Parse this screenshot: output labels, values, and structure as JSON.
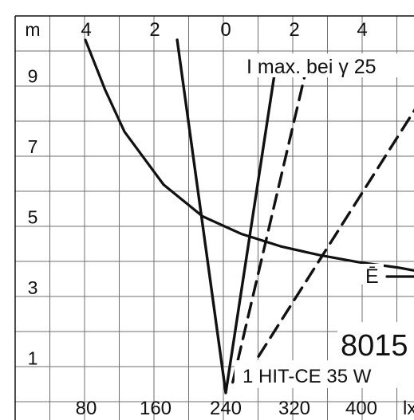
{
  "chart_data": {
    "type": "line",
    "title": "",
    "xlabel": "lx",
    "ylabel": "m",
    "grid": true,
    "top_axis": {
      "unit": "m",
      "ticks": [
        4,
        2,
        0,
        2,
        4
      ],
      "tick_labels": [
        "4",
        "2",
        "0",
        "2",
        "4"
      ]
    },
    "bottom_axis": {
      "unit": "lx",
      "ticks": [
        80,
        160,
        240,
        320,
        400
      ],
      "tick_labels": [
        "80",
        "160",
        "240",
        "320",
        "400"
      ]
    },
    "y_axis": {
      "ticks": [
        9,
        7,
        5,
        3,
        1
      ],
      "tick_labels": [
        "9",
        "7",
        "5",
        "3",
        "1"
      ],
      "ylim": [
        0,
        10
      ]
    },
    "series": [
      {
        "name": "Ē",
        "kind": "illuminance",
        "style": "solid",
        "points": [
          {
            "x": 80,
            "y": 10
          },
          {
            "x": 100,
            "y": 8.6
          },
          {
            "x": 120,
            "y": 7.4
          },
          {
            "x": 160,
            "y": 5.9
          },
          {
            "x": 200,
            "y": 5.0
          },
          {
            "x": 240,
            "y": 4.5
          },
          {
            "x": 280,
            "y": 4.15
          },
          {
            "x": 320,
            "y": 3.9
          },
          {
            "x": 360,
            "y": 3.7
          },
          {
            "x": 400,
            "y": 3.55
          },
          {
            "x": 440,
            "y": 3.35
          },
          {
            "x": 480,
            "y": 3.25
          }
        ]
      },
      {
        "name": "",
        "kind": "beam",
        "style": "solid",
        "points": [
          {
            "x": -1.4,
            "y": 10
          },
          {
            "x": 0,
            "y": 0
          },
          {
            "x": 1.4,
            "y": 9
          }
        ]
      },
      {
        "name": "",
        "kind": "beam",
        "style": "dashed",
        "points": [
          {
            "x": 0.2,
            "y": 0.3
          },
          {
            "x": 2.4,
            "y": 9.5
          }
        ]
      },
      {
        "name": "",
        "kind": "beam",
        "style": "dashed",
        "points": [
          {
            "x": 0.6,
            "y": 0.5
          },
          {
            "x": 5.5,
            "y": 8.1
          }
        ]
      }
    ],
    "annotations": [
      {
        "text": "I max. bei γ 25",
        "anchor": "top-right"
      },
      {
        "text": "Ē",
        "anchor": "right"
      },
      {
        "text": "8015",
        "anchor": "bottom-right"
      },
      {
        "text": "1 HIT-CE 35 W",
        "anchor": "bottom-right"
      }
    ]
  }
}
